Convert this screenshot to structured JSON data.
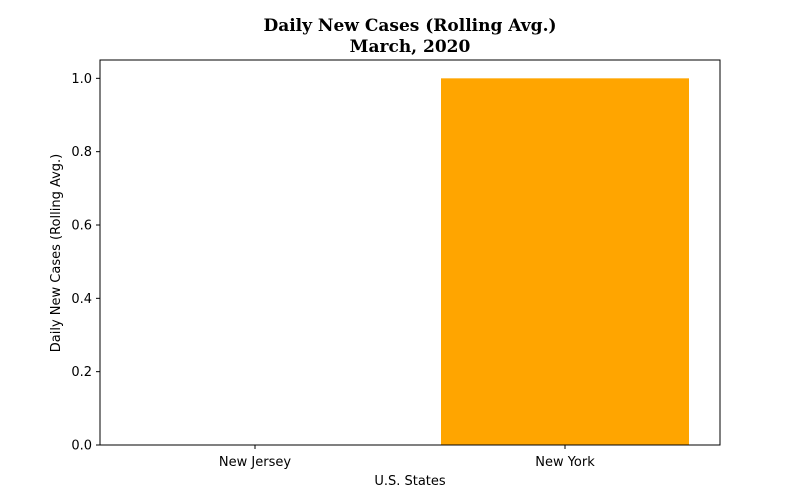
{
  "chart_data": {
    "type": "bar",
    "title": "Daily New Cases (Rolling Avg.)",
    "subtitle": "March, 2020",
    "xlabel": "U.S. States",
    "ylabel": "Daily New Cases (Rolling Avg.)",
    "categories": [
      "New Jersey",
      "New York"
    ],
    "values": [
      0.0,
      1.0
    ],
    "ylim": [
      0,
      1.05
    ],
    "yticks": [
      0.0,
      0.2,
      0.4,
      0.6,
      0.8,
      1.0
    ],
    "ytick_labels": [
      "0.0",
      "0.2",
      "0.4",
      "0.6",
      "0.8",
      "1.0"
    ],
    "bar_color": "#ffa500",
    "grid": false,
    "legend": "none"
  }
}
